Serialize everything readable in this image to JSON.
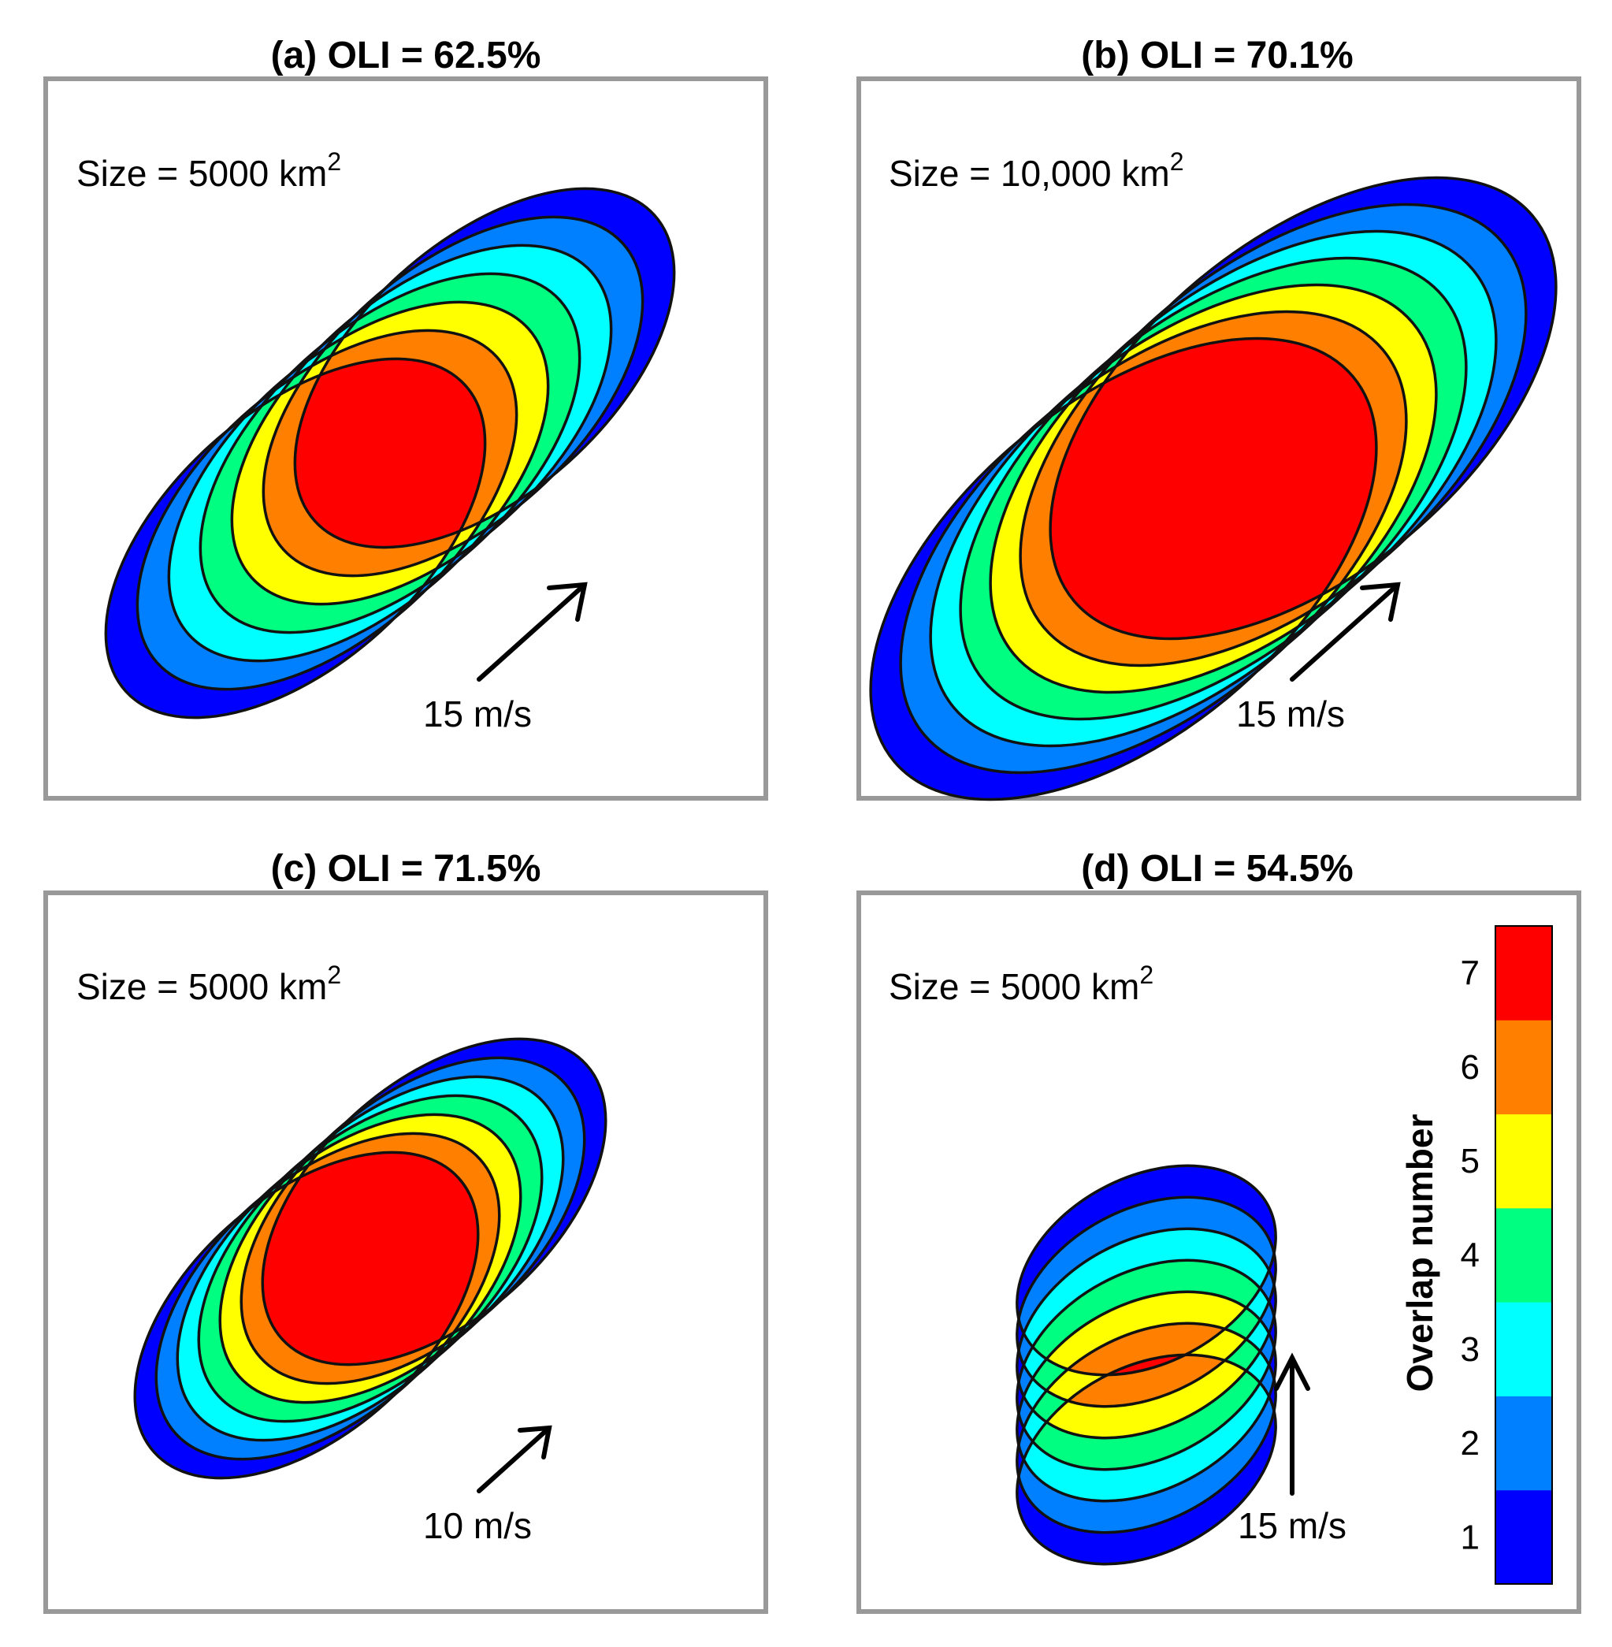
{
  "panels": [
    {
      "id": "a",
      "title": "(a) OLI = 62.5%",
      "size_label": "Size = 5000 km",
      "size_sup": "2",
      "speed_label": "15 m/s"
    },
    {
      "id": "b",
      "title": "(b) OLI = 70.1%",
      "size_label": "Size = 10,000 km",
      "size_sup": "2",
      "speed_label": "15 m/s"
    },
    {
      "id": "c",
      "title": "(c) OLI = 71.5%",
      "size_label": "Size = 5000 km",
      "size_sup": "2",
      "speed_label": "10 m/s"
    },
    {
      "id": "d",
      "title": "(d) OLI = 54.5%",
      "size_label": "Size = 5000 km",
      "size_sup": "2",
      "speed_label": "15 m/s"
    }
  ],
  "colorbar": {
    "label": "Overlap number",
    "ticks": [
      "1",
      "2",
      "3",
      "4",
      "5",
      "6",
      "7"
    ],
    "colors": [
      "#0000ff",
      "#0080ff",
      "#00ffff",
      "#00ff80",
      "#ffff00",
      "#ff8000",
      "#ff0000"
    ]
  }
}
